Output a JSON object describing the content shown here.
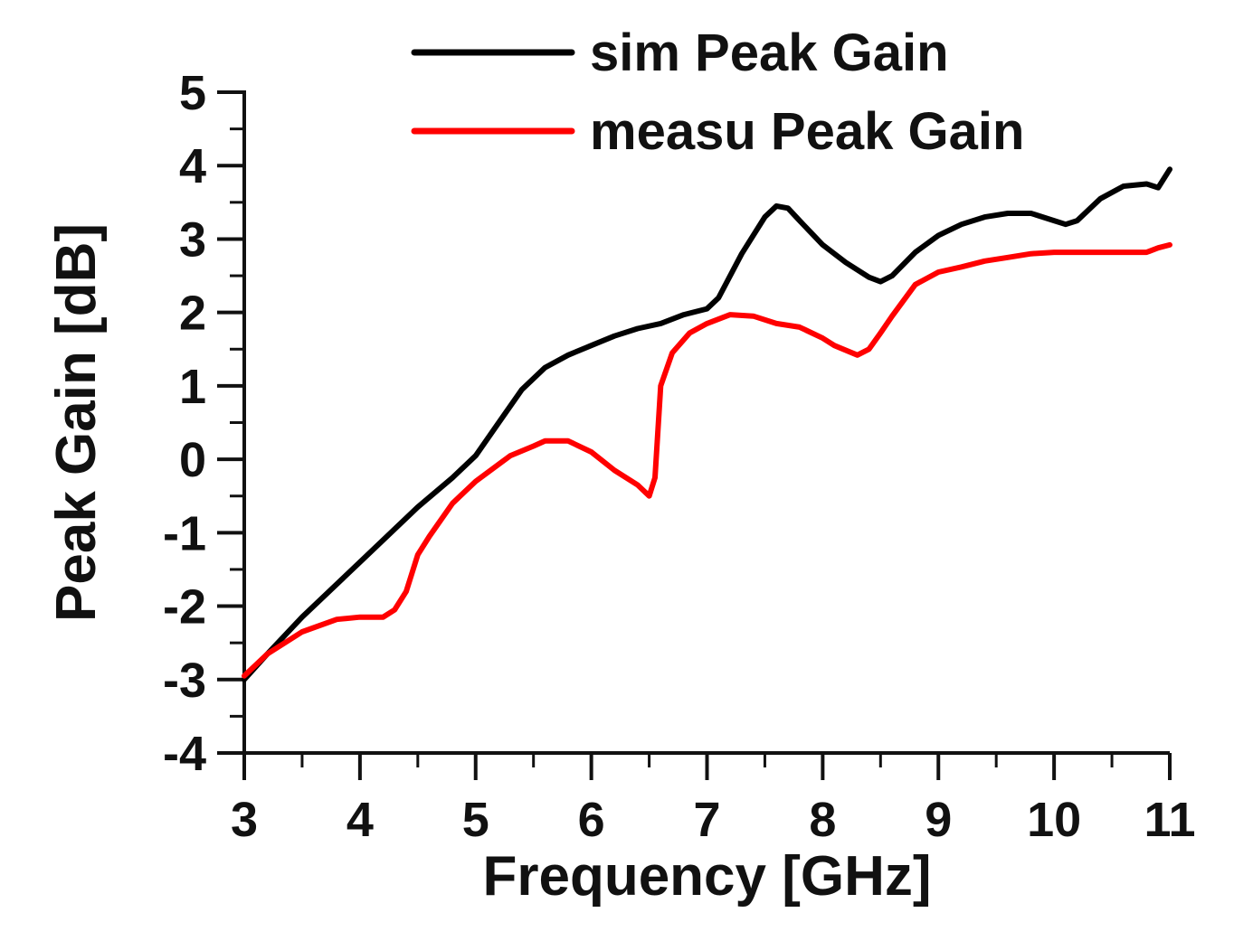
{
  "chart_data": {
    "type": "line",
    "title": "",
    "xlabel": "Frequency [GHz]",
    "ylabel": "Peak Gain [dB]",
    "xlim": [
      3,
      11
    ],
    "ylim": [
      -4,
      5
    ],
    "x_ticks": [
      3,
      4,
      5,
      6,
      7,
      8,
      9,
      10,
      11
    ],
    "y_ticks": [
      -4,
      -3,
      -2,
      -1,
      0,
      1,
      2,
      3,
      4,
      5
    ],
    "x_tick_labels": [
      "3",
      "4",
      "5",
      "6",
      "7",
      "8",
      "9",
      "10",
      "11"
    ],
    "y_tick_labels": [
      "-4",
      "-3",
      "-2",
      "-1",
      "0",
      "1",
      "2",
      "3",
      "4",
      "5"
    ],
    "grid": false,
    "legend_position": "top-right",
    "series": [
      {
        "name": "sim Peak Gain",
        "color": "#000000",
        "x": [
          3.0,
          3.2,
          3.5,
          4.0,
          4.5,
          4.8,
          5.0,
          5.2,
          5.4,
          5.6,
          5.8,
          6.0,
          6.2,
          6.4,
          6.6,
          6.8,
          7.0,
          7.1,
          7.3,
          7.5,
          7.6,
          7.7,
          7.8,
          8.0,
          8.2,
          8.4,
          8.5,
          8.6,
          8.8,
          9.0,
          9.2,
          9.4,
          9.6,
          9.8,
          10.0,
          10.1,
          10.2,
          10.4,
          10.6,
          10.8,
          10.9,
          11.0
        ],
        "y": [
          -3.0,
          -2.65,
          -2.15,
          -1.4,
          -0.65,
          -0.25,
          0.05,
          0.5,
          0.95,
          1.25,
          1.42,
          1.55,
          1.68,
          1.78,
          1.85,
          1.97,
          2.05,
          2.2,
          2.8,
          3.3,
          3.45,
          3.42,
          3.25,
          2.92,
          2.68,
          2.48,
          2.42,
          2.5,
          2.82,
          3.05,
          3.2,
          3.3,
          3.35,
          3.35,
          3.25,
          3.2,
          3.25,
          3.55,
          3.72,
          3.75,
          3.7,
          3.95
        ]
      },
      {
        "name": "measu Peak Gain",
        "color": "#ff0000",
        "x": [
          3.0,
          3.2,
          3.5,
          3.8,
          4.0,
          4.2,
          4.3,
          4.4,
          4.5,
          4.6,
          4.8,
          5.0,
          5.3,
          5.5,
          5.6,
          5.8,
          6.0,
          6.2,
          6.4,
          6.5,
          6.55,
          6.6,
          6.7,
          6.85,
          7.0,
          7.2,
          7.4,
          7.6,
          7.8,
          8.0,
          8.1,
          8.3,
          8.4,
          8.5,
          8.6,
          8.8,
          9.0,
          9.2,
          9.4,
          9.6,
          9.8,
          10.0,
          10.2,
          10.4,
          10.6,
          10.8,
          10.9,
          11.0
        ],
        "y": [
          -2.95,
          -2.65,
          -2.35,
          -2.18,
          -2.15,
          -2.15,
          -2.05,
          -1.8,
          -1.3,
          -1.05,
          -0.6,
          -0.3,
          0.05,
          0.18,
          0.25,
          0.25,
          0.1,
          -0.15,
          -0.35,
          -0.5,
          -0.25,
          1.0,
          1.45,
          1.72,
          1.85,
          1.97,
          1.95,
          1.85,
          1.8,
          1.65,
          1.55,
          1.42,
          1.5,
          1.72,
          1.95,
          2.38,
          2.55,
          2.62,
          2.7,
          2.75,
          2.8,
          2.82,
          2.82,
          2.82,
          2.82,
          2.82,
          2.88,
          2.92
        ]
      }
    ]
  }
}
